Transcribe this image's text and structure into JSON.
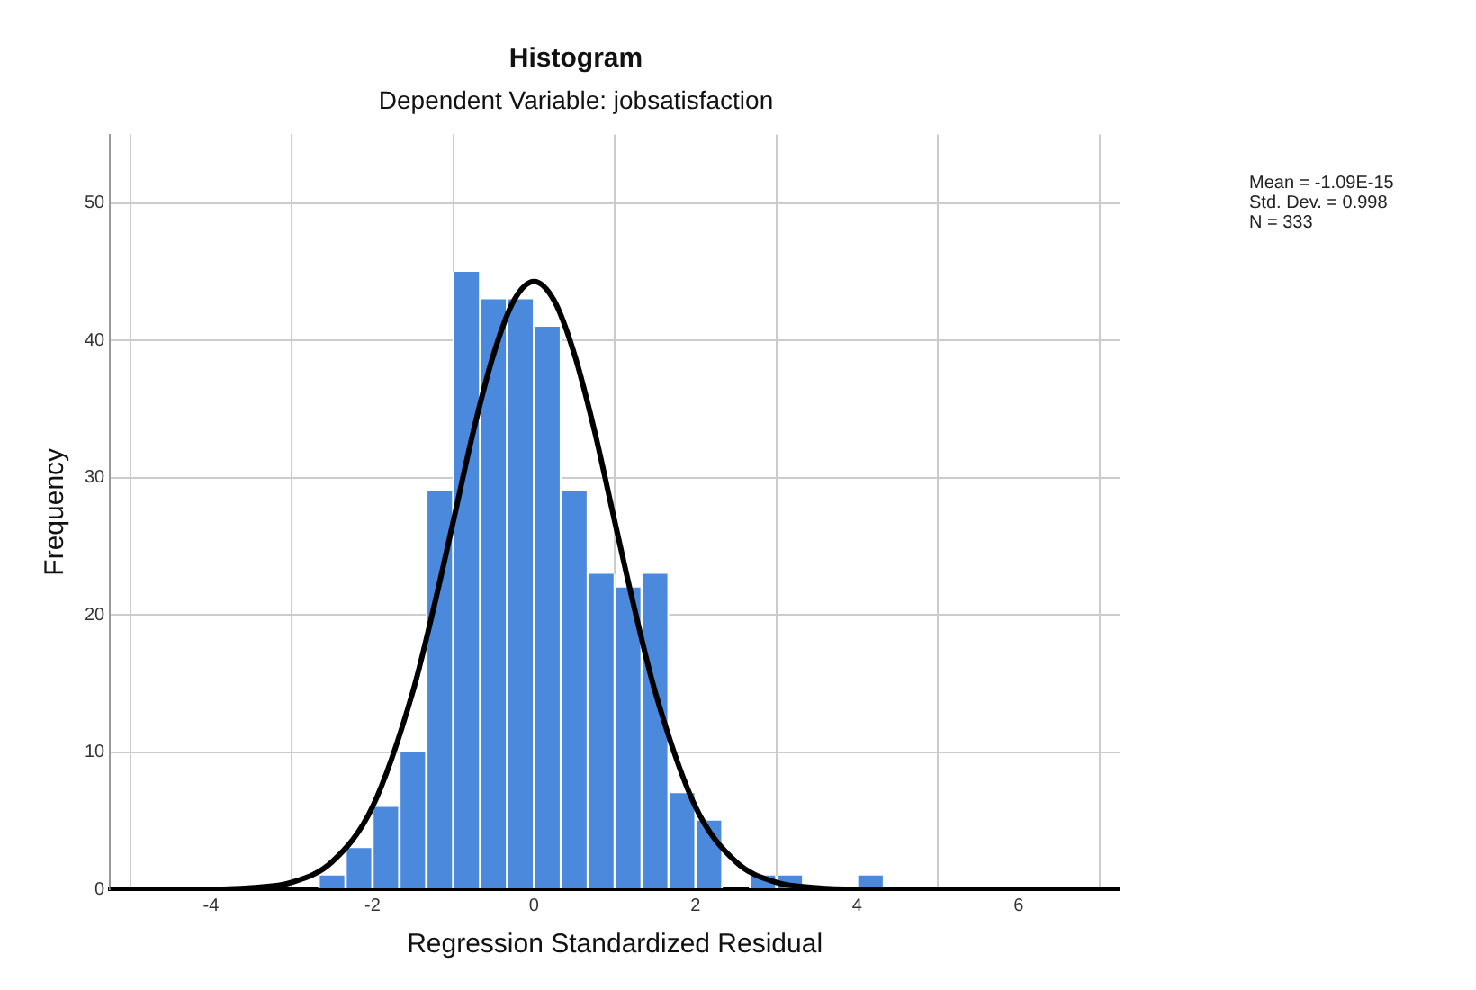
{
  "chart_data": {
    "type": "histogram",
    "title": "Histogram",
    "subtitle": "Dependent Variable: jobsatisfaction",
    "xlabel": "Regression Standardized Residual",
    "ylabel": "Frequency",
    "annotations": [
      "Mean = -1.09E-15",
      "Std. Dev. = 0.998",
      "N = 333"
    ],
    "series": [
      {
        "color": "#4a89dc",
        "bins": [
          -2.667,
          -2.333,
          -2,
          -1.667,
          -1.333,
          -1,
          -0.667,
          -0.333,
          0,
          0.333,
          0.667,
          1,
          1.333,
          1.667,
          2,
          2.333,
          2.667,
          3,
          3.333,
          3.667,
          4,
          4.333
        ],
        "values": [
          1,
          3,
          6,
          10,
          29,
          45,
          43,
          43,
          41,
          29,
          23,
          22,
          23,
          7,
          5,
          0,
          1,
          1,
          0,
          0,
          1
        ]
      },
      {
        "type": "line",
        "color": "#000000",
        "x": [
          -5.25,
          -4,
          -3.5,
          -3,
          -2.5,
          -2,
          -1.5,
          -1.25,
          -1,
          -0.75,
          -0.5,
          -0.25,
          0,
          0.25,
          0.5,
          0.75,
          1,
          1.25,
          1.5,
          2,
          2.5,
          3,
          3.5,
          4,
          5,
          7.25
        ],
        "values": [
          0,
          0,
          0.1,
          0.5,
          2,
          6,
          14.4,
          20.3,
          26.8,
          33.4,
          39,
          42.9,
          44.3,
          42.9,
          39,
          33.4,
          26.8,
          20.3,
          14.4,
          6,
          2,
          0.5,
          0.1,
          0,
          0,
          0
        ]
      }
    ],
    "xlim": [
      -5.25,
      7.25
    ],
    "xticks": [
      -4,
      -2,
      0,
      2,
      4,
      6
    ],
    "ylim": [
      0,
      55
    ],
    "yticks": [
      0,
      10,
      20,
      30,
      40,
      50
    ],
    "grid": true,
    "legend": false
  }
}
